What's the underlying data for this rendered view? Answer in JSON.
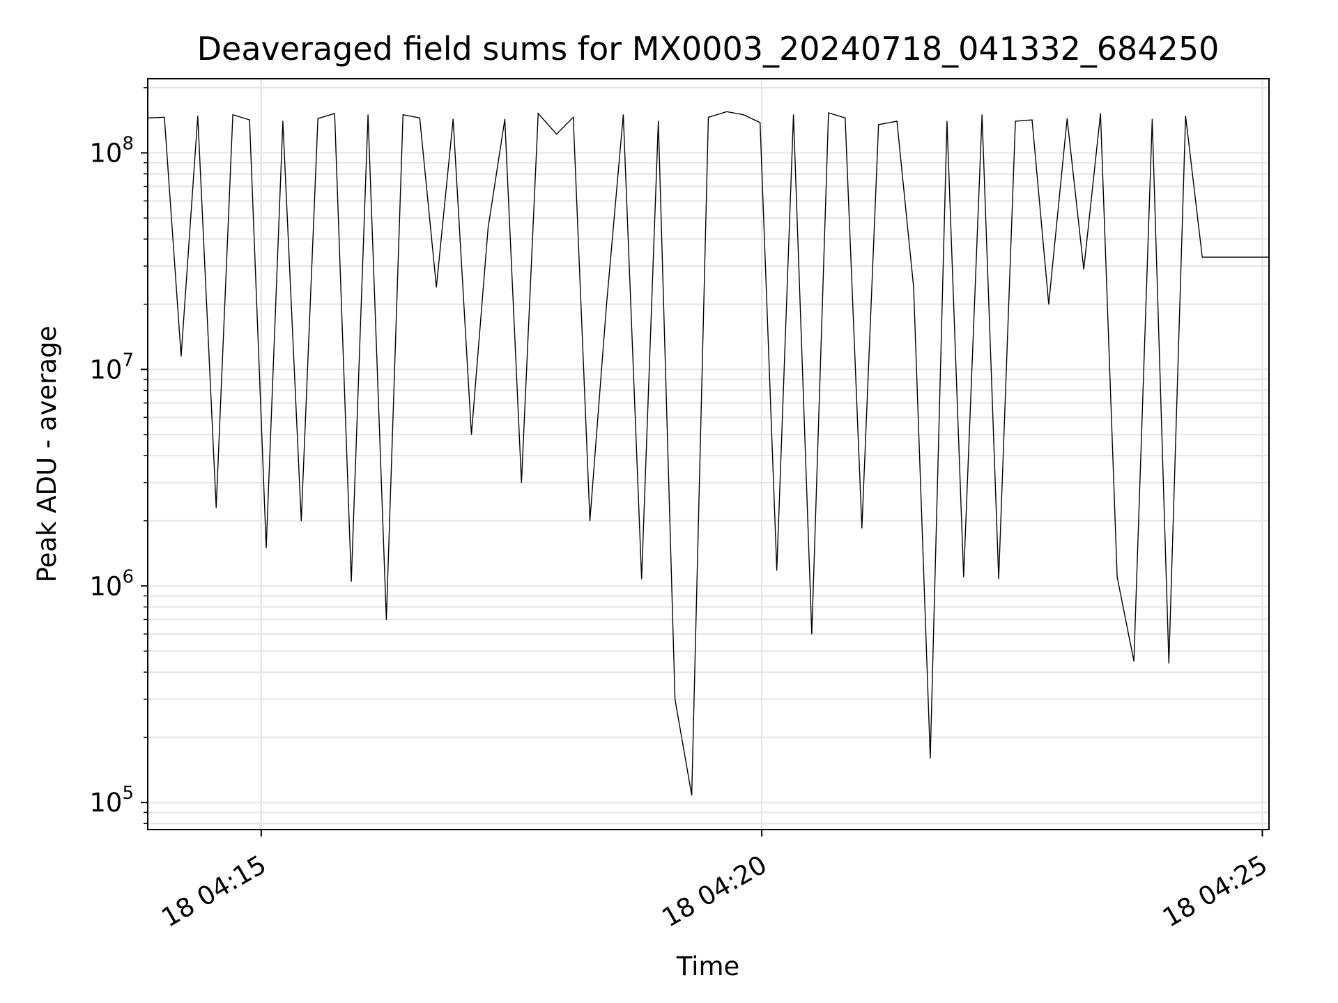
{
  "chart_data": {
    "type": "line",
    "title": "Deaveraged field sums for MX0003_20240718_041332_684250",
    "xlabel": "Time",
    "ylabel": "Peak ADU - average",
    "y_scale": "log",
    "grid": true,
    "line_color": "#000000",
    "xlim": [
      "2024-07-18 04:13:52",
      "2024-07-18 04:25:04"
    ],
    "ylim": [
      75000,
      220000000
    ],
    "x_ticks": [
      {
        "value": "2024-07-18 04:15:00",
        "label": "18 04:15"
      },
      {
        "value": "2024-07-18 04:20:00",
        "label": "18 04:20"
      },
      {
        "value": "2024-07-18 04:25:00",
        "label": "18 04:25"
      }
    ],
    "y_ticks": [
      {
        "value": 100000,
        "base": "10",
        "exp": "5"
      },
      {
        "value": 1000000,
        "base": "10",
        "exp": "6"
      },
      {
        "value": 10000000,
        "base": "10",
        "exp": "7"
      },
      {
        "value": 100000000,
        "base": "10",
        "exp": "8"
      }
    ],
    "series": [
      {
        "x": [
          "2024-07-18 04:13:52",
          "2024-07-18 04:14:02",
          "2024-07-18 04:14:12",
          "2024-07-18 04:14:22",
          "2024-07-18 04:14:33",
          "2024-07-18 04:14:43",
          "2024-07-18 04:14:53",
          "2024-07-18 04:15:03",
          "2024-07-18 04:15:13",
          "2024-07-18 04:15:24",
          "2024-07-18 04:15:34",
          "2024-07-18 04:15:44",
          "2024-07-18 04:15:54",
          "2024-07-18 04:16:04",
          "2024-07-18 04:16:15",
          "2024-07-18 04:16:25",
          "2024-07-18 04:16:35",
          "2024-07-18 04:16:45",
          "2024-07-18 04:16:55",
          "2024-07-18 04:17:06",
          "2024-07-18 04:17:16",
          "2024-07-18 04:17:26",
          "2024-07-18 04:17:36",
          "2024-07-18 04:17:46",
          "2024-07-18 04:17:57",
          "2024-07-18 04:18:07",
          "2024-07-18 04:18:17",
          "2024-07-18 04:18:27",
          "2024-07-18 04:18:37",
          "2024-07-18 04:18:48",
          "2024-07-18 04:18:58",
          "2024-07-18 04:19:08",
          "2024-07-18 04:19:18",
          "2024-07-18 04:19:28",
          "2024-07-18 04:19:39",
          "2024-07-18 04:19:49",
          "2024-07-18 04:19:59",
          "2024-07-18 04:20:09",
          "2024-07-18 04:20:19",
          "2024-07-18 04:20:30",
          "2024-07-18 04:20:40",
          "2024-07-18 04:20:50",
          "2024-07-18 04:21:00",
          "2024-07-18 04:21:10",
          "2024-07-18 04:21:21",
          "2024-07-18 04:21:31",
          "2024-07-18 04:21:41",
          "2024-07-18 04:21:51",
          "2024-07-18 04:22:01",
          "2024-07-18 04:22:12",
          "2024-07-18 04:22:22",
          "2024-07-18 04:22:32",
          "2024-07-18 04:22:42",
          "2024-07-18 04:22:52",
          "2024-07-18 04:23:03",
          "2024-07-18 04:23:13",
          "2024-07-18 04:23:23",
          "2024-07-18 04:23:33",
          "2024-07-18 04:23:43",
          "2024-07-18 04:23:54",
          "2024-07-18 04:24:04",
          "2024-07-18 04:24:14",
          "2024-07-18 04:24:24",
          "2024-07-18 04:25:04"
        ],
        "y": [
          145000000,
          146000000,
          11500000,
          148000000,
          2300000,
          150000000,
          142000000,
          1500000,
          140000000,
          2000000,
          144000000,
          152000000,
          1050000,
          150000000,
          700000,
          150000000,
          145000000,
          24000000,
          143000000,
          5000000,
          45000000,
          143000000,
          3000000,
          152000000,
          122000000,
          146000000,
          2000000,
          20000000,
          150000000,
          1080000,
          140000000,
          300000,
          108000,
          146000000,
          155000000,
          150000000,
          138000000,
          1180000,
          150000000,
          600000,
          153000000,
          145000000,
          1850000,
          135000000,
          140000000,
          24000000,
          160000,
          140000000,
          1100000,
          150000000,
          1080000,
          140000000,
          142000000,
          20000000,
          144000000,
          29000000,
          152000000,
          1100000,
          450000,
          143000000,
          440000,
          148000000,
          33000000,
          33000000
        ]
      }
    ]
  }
}
